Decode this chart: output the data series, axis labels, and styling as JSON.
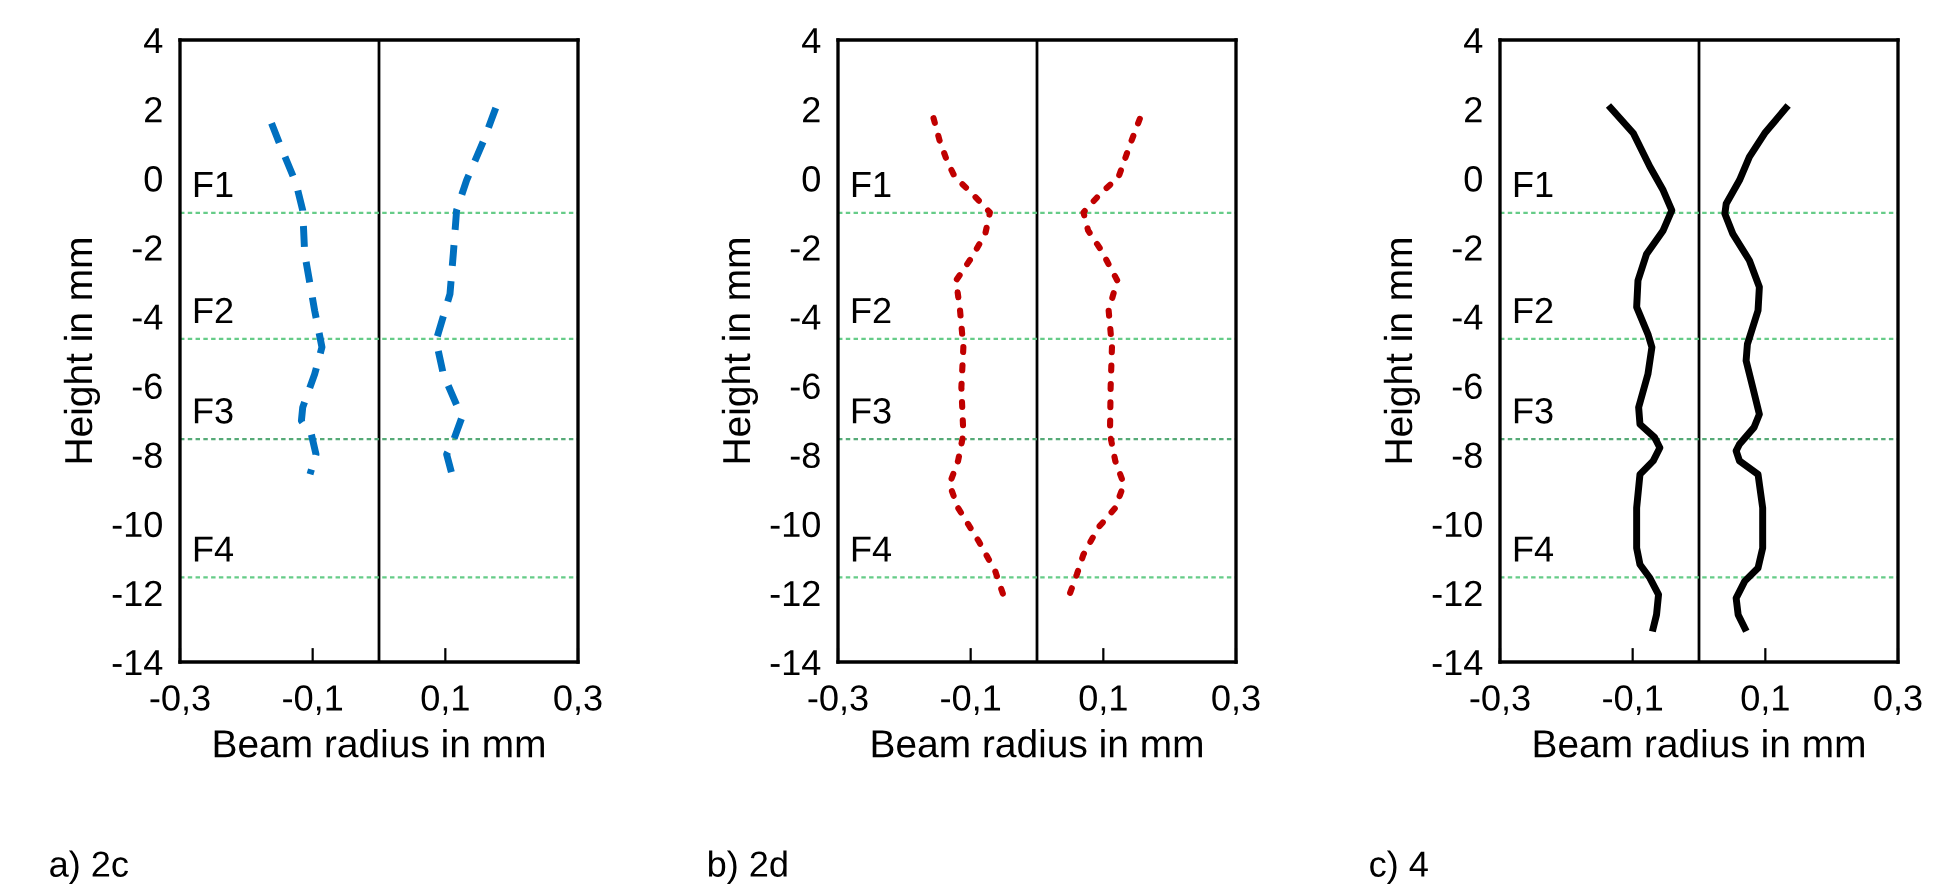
{
  "chart_data": [
    {
      "type": "line",
      "xlabel": "Beam radius in mm",
      "ylabel": "Height in mm",
      "annotations": [
        "a) 2c"
      ],
      "xlim": [
        -0.3,
        0.3
      ],
      "ylim": [
        -14,
        4
      ],
      "xticks": [
        {
          "value": -0.3,
          "label": "-0,3"
        },
        {
          "value": -0.1,
          "label": "-0,1"
        },
        {
          "value": 0.1,
          "label": "0,1"
        },
        {
          "value": 0.3,
          "label": "0,3"
        }
      ],
      "yticks": [
        -14,
        -12,
        -10,
        -8,
        -6,
        -4,
        -2,
        0,
        2,
        4
      ],
      "grid": false,
      "line_style": "dashed",
      "ref_lines": [
        {
          "axis": "x",
          "value": 0,
          "color": "#000000",
          "line_style": "solid"
        },
        {
          "axis": "y",
          "value": -1,
          "label": "F1",
          "color": "#66cc88",
          "line_style": "dashed"
        },
        {
          "axis": "y",
          "value": -4.65,
          "label": "F2",
          "color": "#66cc88",
          "line_style": "dashed"
        },
        {
          "axis": "y",
          "value": -7.55,
          "label": "F3",
          "color": "#55aa77",
          "line_style": "dashed"
        },
        {
          "axis": "y",
          "value": -11.55,
          "label": "F4",
          "color": "#66cc88",
          "line_style": "dashed"
        }
      ],
      "series": [
        {
          "color": "#0070c0",
          "x": [
            -0.162,
            -0.148,
            -0.125,
            -0.115,
            -0.112,
            -0.097,
            -0.086,
            -0.097,
            -0.115,
            -0.117,
            -0.102,
            -0.095,
            -0.104
          ],
          "values": [
            1.59,
            0.91,
            -0.15,
            -0.93,
            -2.19,
            -3.83,
            -4.89,
            -5.67,
            -6.63,
            -7.02,
            -7.41,
            -7.99,
            -8.57
          ]
        },
        {
          "color": "#0070c0",
          "x": [
            0.176,
            0.158,
            0.132,
            0.117,
            0.112,
            0.107,
            0.086,
            0.097,
            0.125,
            0.112,
            0.102,
            0.11
          ],
          "values": [
            2.03,
            1.1,
            -0.06,
            -0.93,
            -2.19,
            -3.35,
            -4.7,
            -5.67,
            -6.92,
            -7.6,
            -7.99,
            -8.57
          ]
        }
      ]
    },
    {
      "type": "line",
      "xlabel": "Beam radius in mm",
      "ylabel": "Height in mm",
      "annotations": [
        "b) 2d"
      ],
      "xlim": [
        -0.3,
        0.3
      ],
      "ylim": [
        -14,
        4
      ],
      "xticks": [
        {
          "value": -0.3,
          "label": "-0,3"
        },
        {
          "value": -0.1,
          "label": "-0,1"
        },
        {
          "value": 0.1,
          "label": "0,1"
        },
        {
          "value": 0.3,
          "label": "0,3"
        }
      ],
      "yticks": [
        -14,
        -12,
        -10,
        -8,
        -6,
        -4,
        -2,
        0,
        2,
        4
      ],
      "grid": false,
      "line_style": "dotted",
      "ref_lines": [
        {
          "axis": "x",
          "value": 0,
          "color": "#000000",
          "line_style": "solid"
        },
        {
          "axis": "y",
          "value": -1,
          "label": "F1",
          "color": "#66cc88",
          "line_style": "dashed"
        },
        {
          "axis": "y",
          "value": -4.65,
          "label": "F2",
          "color": "#66cc88",
          "line_style": "dashed"
        },
        {
          "axis": "y",
          "value": -7.55,
          "label": "F3",
          "color": "#55aa77",
          "line_style": "dashed"
        },
        {
          "axis": "y",
          "value": -11.55,
          "label": "F4",
          "color": "#66cc88",
          "line_style": "dashed"
        }
      ],
      "series": [
        {
          "color": "#c00000",
          "x": [
            -0.156,
            -0.147,
            -0.136,
            -0.124,
            -0.098,
            -0.071,
            -0.078,
            -0.098,
            -0.122,
            -0.116,
            -0.111,
            -0.114,
            -0.111,
            -0.119,
            -0.132,
            -0.119,
            -0.088,
            -0.063,
            -0.051
          ],
          "values": [
            1.74,
            1.1,
            0.52,
            0.04,
            -0.44,
            -0.99,
            -1.61,
            -2.28,
            -2.96,
            -3.83,
            -4.89,
            -6.05,
            -7.41,
            -8.18,
            -8.86,
            -9.54,
            -10.5,
            -11.37,
            -12.05
          ]
        },
        {
          "color": "#c00000",
          "x": [
            0.155,
            0.141,
            0.123,
            0.094,
            0.07,
            0.077,
            0.097,
            0.121,
            0.108,
            0.113,
            0.111,
            0.11,
            0.118,
            0.131,
            0.118,
            0.092,
            0.07,
            0.06,
            0.049
          ],
          "values": [
            1.72,
            1.01,
            0.04,
            -0.48,
            -0.99,
            -1.51,
            -2.09,
            -2.96,
            -3.83,
            -4.89,
            -6.05,
            -7.41,
            -8.18,
            -8.86,
            -9.54,
            -10.12,
            -10.89,
            -11.47,
            -12.05
          ]
        }
      ]
    },
    {
      "type": "line",
      "xlabel": "Beam radius in mm",
      "ylabel": "Height in mm",
      "annotations": [
        "c) 4"
      ],
      "xlim": [
        -0.3,
        0.3
      ],
      "ylim": [
        -14,
        4
      ],
      "xticks": [
        {
          "value": -0.3,
          "label": "-0,3"
        },
        {
          "value": -0.1,
          "label": "-0,1"
        },
        {
          "value": 0.1,
          "label": "0,1"
        },
        {
          "value": 0.3,
          "label": "0,3"
        }
      ],
      "yticks": [
        -14,
        -12,
        -10,
        -8,
        -6,
        -4,
        -2,
        0,
        2,
        4
      ],
      "grid": false,
      "line_style": "solid",
      "ref_lines": [
        {
          "axis": "x",
          "value": 0,
          "color": "#000000",
          "line_style": "solid"
        },
        {
          "axis": "y",
          "value": -1,
          "label": "F1",
          "color": "#66cc88",
          "line_style": "dashed"
        },
        {
          "axis": "y",
          "value": -4.65,
          "label": "F2",
          "color": "#66cc88",
          "line_style": "dashed"
        },
        {
          "axis": "y",
          "value": -7.55,
          "label": "F3",
          "color": "#55aa77",
          "line_style": "dashed"
        },
        {
          "axis": "y",
          "value": -11.55,
          "label": "F4",
          "color": "#66cc88",
          "line_style": "dashed"
        }
      ],
      "series": [
        {
          "color": "#000000",
          "x": [
            -0.133,
            -0.099,
            -0.074,
            -0.054,
            -0.041,
            -0.054,
            -0.079,
            -0.092,
            -0.094,
            -0.077,
            -0.071,
            -0.077,
            -0.091,
            -0.089,
            -0.067,
            -0.059,
            -0.069,
            -0.089,
            -0.094,
            -0.094,
            -0.089,
            -0.074,
            -0.061,
            -0.064,
            -0.069
          ],
          "values": [
            2.03,
            1.3,
            0.33,
            -0.35,
            -0.93,
            -1.51,
            -2.19,
            -2.96,
            -3.73,
            -4.51,
            -4.89,
            -5.67,
            -6.63,
            -7.12,
            -7.5,
            -7.8,
            -8.18,
            -8.57,
            -9.54,
            -10.7,
            -11.18,
            -11.57,
            -12.05,
            -12.63,
            -13.02
          ]
        },
        {
          "color": "#000000",
          "x": [
            0.131,
            0.099,
            0.076,
            0.061,
            0.041,
            0.039,
            0.051,
            0.076,
            0.091,
            0.089,
            0.073,
            0.071,
            0.081,
            0.091,
            0.083,
            0.061,
            0.056,
            0.061,
            0.089,
            0.096,
            0.096,
            0.089,
            0.069,
            0.056,
            0.059,
            0.069
          ],
          "values": [
            2.03,
            1.3,
            0.62,
            -0.06,
            -0.74,
            -1.03,
            -1.61,
            -2.38,
            -3.15,
            -3.83,
            -4.8,
            -5.28,
            -6.05,
            -6.83,
            -7.21,
            -7.7,
            -7.89,
            -8.18,
            -8.57,
            -9.54,
            -10.7,
            -11.28,
            -11.66,
            -12.15,
            -12.63,
            -13.02
          ]
        }
      ]
    }
  ]
}
